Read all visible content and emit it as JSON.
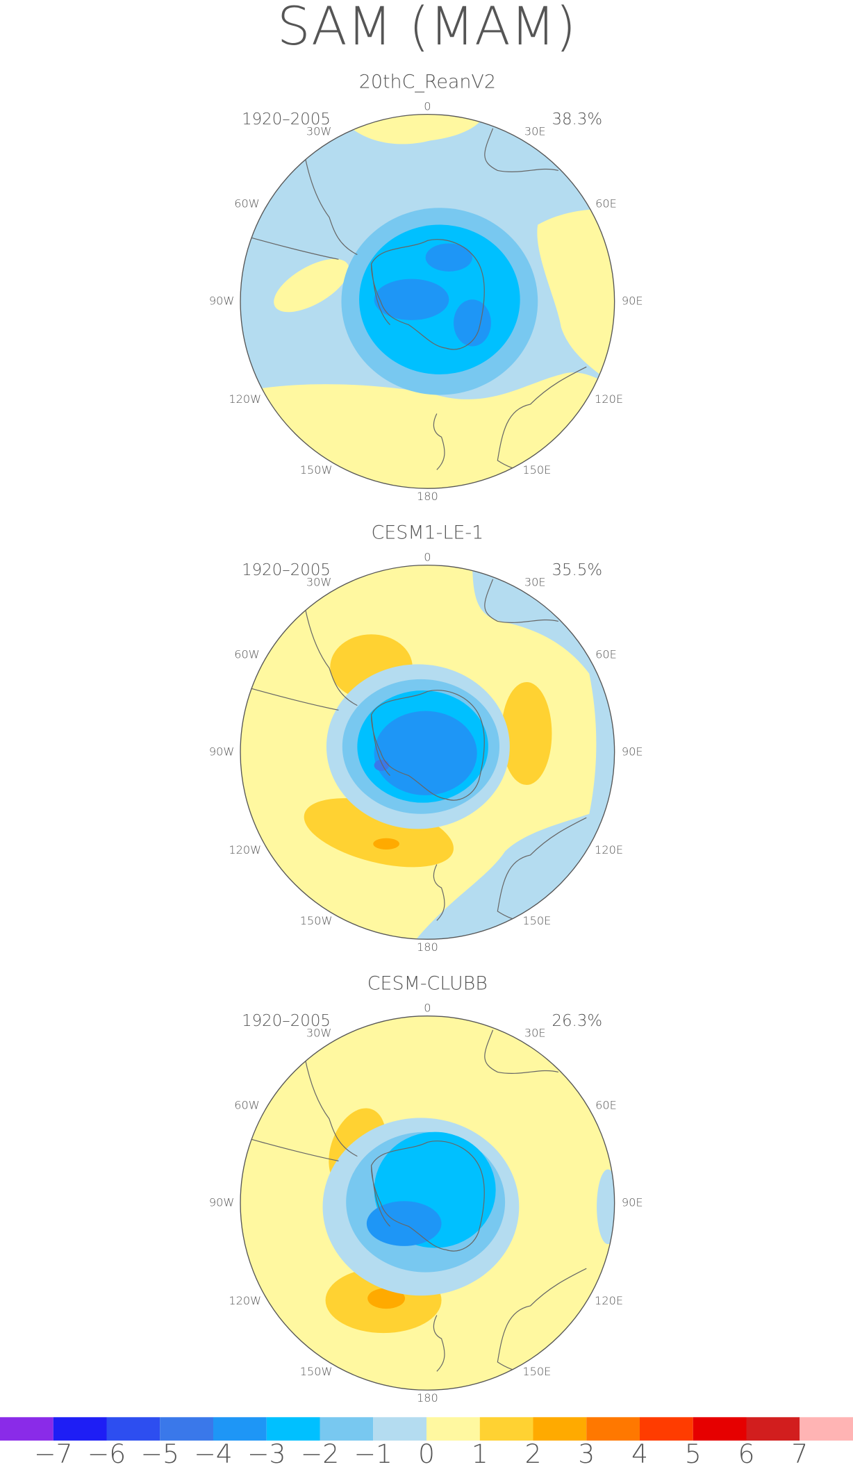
{
  "title": "SAM (MAM)",
  "panels": [
    {
      "title": "20thC_ReanV2",
      "period": "1920–2005",
      "variance": "38.3%",
      "lon_labels": [
        "0",
        "30E",
        "60E",
        "90E",
        "120E",
        "150E",
        "180",
        "150W",
        "120W",
        "90W",
        "60W",
        "30W"
      ]
    },
    {
      "title": "CESM1-LE-1",
      "period": "1920–2005",
      "variance": "35.5%",
      "lon_labels": [
        "0",
        "30E",
        "60E",
        "90E",
        "120E",
        "150E",
        "180",
        "150W",
        "120W",
        "90W",
        "60W",
        "30W"
      ]
    },
    {
      "title": "CESM-CLUBB",
      "period": "1920–2005",
      "variance": "26.3%",
      "lon_labels": [
        "0",
        "30E",
        "60E",
        "90E",
        "120E",
        "150E",
        "180",
        "150W",
        "120W",
        "90W",
        "60W",
        "30W"
      ]
    }
  ],
  "colorbar": {
    "colors": [
      "#8a2be8",
      "#1e1ef5",
      "#2d4ef0",
      "#3a78ea",
      "#1e96f6",
      "#00c0ff",
      "#78c8f0",
      "#b4dcf0",
      "#fff8a0",
      "#ffd232",
      "#ffaa00",
      "#ff7800",
      "#ff3c00",
      "#e60000",
      "#d21e1e",
      "#ffb4b4"
    ],
    "labels": [
      "−7",
      "−6",
      "−5",
      "−4",
      "−3",
      "−2",
      "−1",
      "0",
      "1",
      "2",
      "3",
      "4",
      "5",
      "6",
      "7"
    ]
  }
}
